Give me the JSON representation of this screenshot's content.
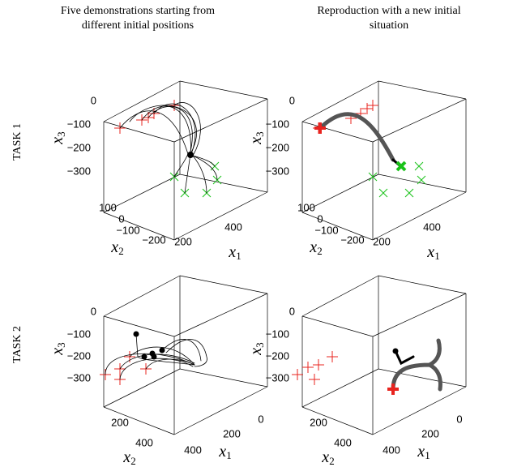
{
  "columns": [
    {
      "line1": "Five demonstrations starting from",
      "line2": "different initial positions"
    },
    {
      "line1": "Reproduction with a new initial",
      "line2": "situation"
    }
  ],
  "rows": [
    "TASK 1",
    "TASK 2"
  ],
  "panels": [
    {
      "zticks": [
        "0",
        "−100",
        "−200",
        "−300"
      ],
      "x2ticks": [
        "100",
        "0",
        "−100",
        "−200"
      ],
      "x1ticks": [
        "200",
        "400"
      ],
      "z_label": {
        "symbol": "x",
        "index": "3"
      },
      "x2_label": {
        "symbol": "x",
        "index": "2"
      },
      "x1_label": {
        "symbol": "x",
        "index": "1"
      }
    },
    {
      "zticks": [
        "0",
        "−100",
        "−200",
        "−300"
      ],
      "x2ticks": [
        "100",
        "0",
        "−100",
        "−200"
      ],
      "x1ticks": [
        "200",
        "400"
      ],
      "z_label": {
        "symbol": "x",
        "index": "3"
      },
      "x2_label": {
        "symbol": "x",
        "index": "2"
      },
      "x1_label": {
        "symbol": "x",
        "index": "1"
      }
    },
    {
      "zticks": [
        "0",
        "−100",
        "−200",
        "−300"
      ],
      "x2ticks": [
        "200",
        "400"
      ],
      "x1ticks": [
        "0",
        "200",
        "400"
      ],
      "z_label": {
        "symbol": "x",
        "index": "3"
      },
      "x2_label": {
        "symbol": "x",
        "index": "2"
      },
      "x1_label": {
        "symbol": "x",
        "index": "1"
      }
    },
    {
      "zticks": [
        "0",
        "−100",
        "−200",
        "−300"
      ],
      "x2ticks": [
        "200",
        "400"
      ],
      "x1ticks": [
        "0",
        "200",
        "400"
      ],
      "z_label": {
        "symbol": "x",
        "index": "3"
      },
      "x2_label": {
        "symbol": "x",
        "index": "2"
      },
      "x1_label": {
        "symbol": "x",
        "index": "1"
      }
    }
  ]
}
